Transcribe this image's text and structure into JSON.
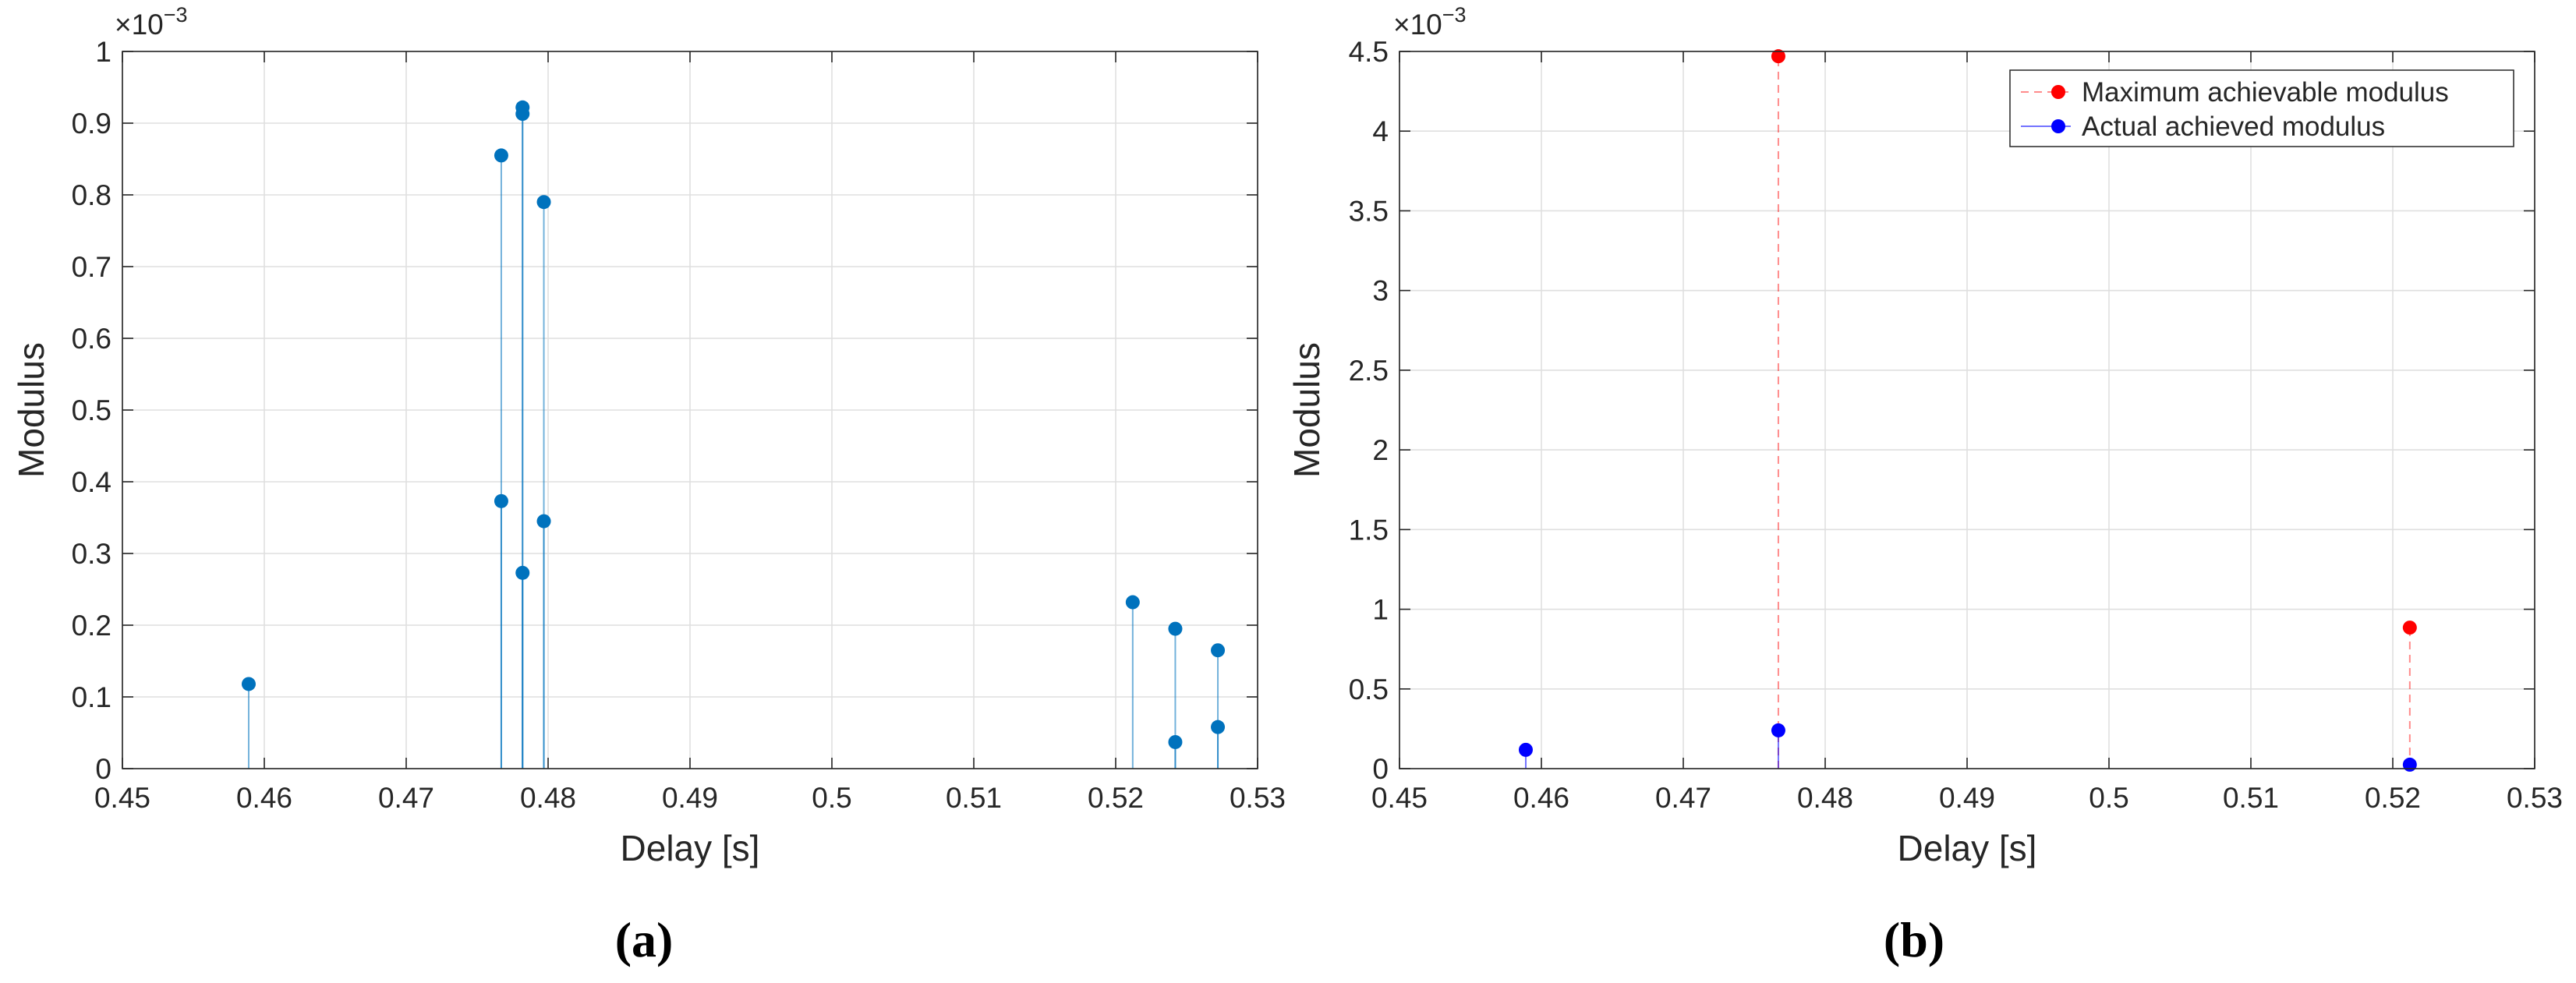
{
  "panels": [
    {
      "caption": "(a)",
      "exponent": {
        "base": "×10",
        "power": "−3"
      }
    },
    {
      "caption": "(b)",
      "exponent": {
        "base": "×10",
        "power": "−3"
      }
    }
  ],
  "chart_data": [
    {
      "type": "scatter",
      "mark": "stem",
      "xlabel": "Delay [s]",
      "ylabel": "Modulus",
      "xlim": [
        0.45,
        0.53
      ],
      "ylim": [
        0,
        1
      ],
      "y_scale": "×10^-3",
      "xticks": [
        "0.45",
        "0.46",
        "0.47",
        "0.48",
        "0.49",
        "0.5",
        "0.51",
        "0.52",
        "0.53"
      ],
      "yticks": [
        "0",
        "0.1",
        "0.2",
        "0.3",
        "0.4",
        "0.5",
        "0.6",
        "0.7",
        "0.8",
        "0.9",
        "1"
      ],
      "grid": true,
      "color": "#0072BD",
      "series": [
        {
          "x": [
            0.4589,
            0.4767,
            0.4767,
            0.4782,
            0.4782,
            0.4782,
            0.4797,
            0.4797,
            0.5212,
            0.5242,
            0.5242,
            0.5272,
            0.5272
          ],
          "y": [
            0.118,
            0.855,
            0.373,
            0.922,
            0.913,
            0.273,
            0.79,
            0.345,
            0.232,
            0.195,
            0.037,
            0.165,
            0.058
          ]
        }
      ]
    },
    {
      "type": "scatter",
      "mark": "stem",
      "xlabel": "Delay [s]",
      "ylabel": "Modulus",
      "xlim": [
        0.45,
        0.53
      ],
      "ylim": [
        0,
        4.5
      ],
      "y_scale": "×10^-3",
      "xticks": [
        "0.45",
        "0.46",
        "0.47",
        "0.48",
        "0.49",
        "0.5",
        "0.51",
        "0.52",
        "0.53"
      ],
      "yticks": [
        "0",
        "0.5",
        "1",
        "1.5",
        "2",
        "2.5",
        "3",
        "3.5",
        "4",
        "4.5"
      ],
      "grid": true,
      "legend_position": "top-right",
      "series": [
        {
          "name": "Maximum achievable modulus",
          "color": "#FF0000",
          "line": "dashed",
          "x": [
            0.4767,
            0.5212
          ],
          "y": [
            4.47,
            0.885
          ]
        },
        {
          "name": "Actual achieved modulus",
          "color": "#0000FF",
          "line": "solid",
          "x": [
            0.4589,
            0.4767,
            0.5212
          ],
          "y": [
            0.118,
            0.24,
            0.025
          ]
        }
      ]
    }
  ]
}
